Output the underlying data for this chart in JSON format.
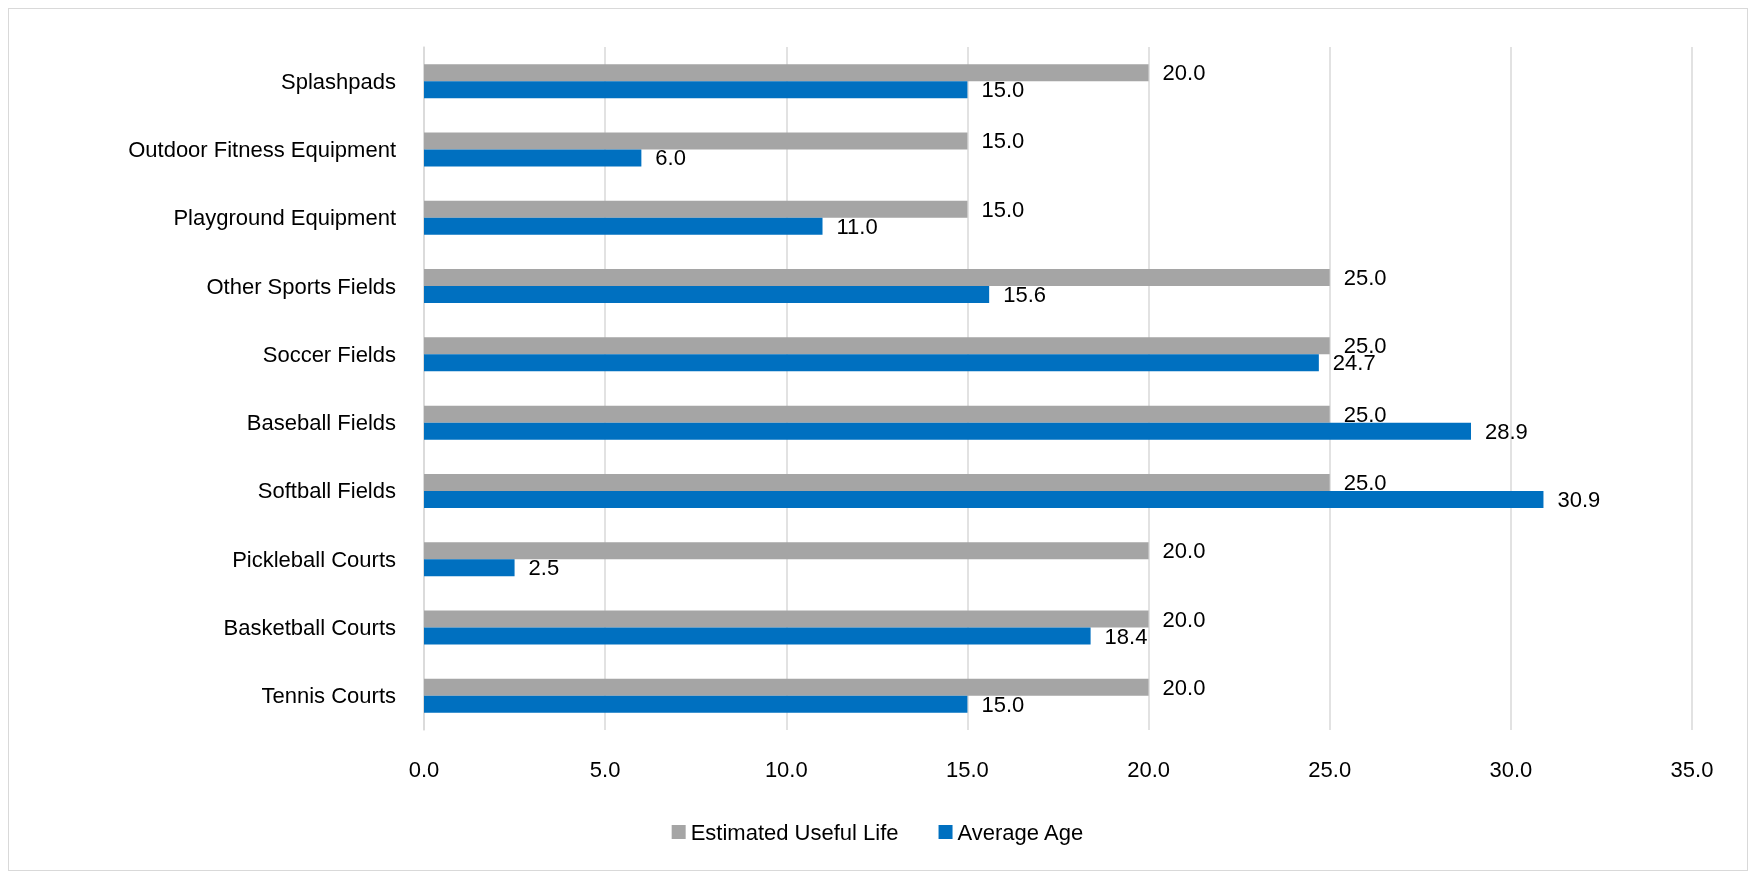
{
  "chart_data": {
    "type": "bar",
    "orientation": "horizontal",
    "categories": [
      "Splashpads",
      "Outdoor Fitness Equipment",
      "Playground Equipment",
      "Other Sports Fields",
      "Soccer Fields",
      "Baseball Fields",
      "Softball Fields",
      "Pickleball Courts",
      "Basketball Courts",
      "Tennis Courts"
    ],
    "series": [
      {
        "name": "Estimated Useful Life",
        "color": "#a5a5a5",
        "values": [
          20,
          15,
          15,
          25,
          25,
          25,
          25,
          20,
          20,
          20
        ],
        "value_labels": [
          "20.0",
          "15.0",
          "15.0",
          "25.0",
          "25.0",
          "25.0",
          "25.0",
          "20.0",
          "20.0",
          "20.0"
        ]
      },
      {
        "name": "Average Age",
        "color": "#0070c0",
        "values": [
          15,
          6,
          11,
          15.6,
          24.7,
          28.9,
          30.9,
          2.5,
          18.4,
          15
        ],
        "value_labels": [
          "15.0",
          "6.0",
          "11.0",
          "15.6",
          "24.7",
          "28.9",
          "30.9",
          "2.5",
          "18.4",
          "15.0"
        ]
      }
    ],
    "xlim": [
      0,
      35
    ],
    "xticks": [
      {
        "value": 0,
        "label": "0.0"
      },
      {
        "value": 5,
        "label": "5.0"
      },
      {
        "value": 10,
        "label": "10.0"
      },
      {
        "value": 15,
        "label": "15.0"
      },
      {
        "value": 20,
        "label": "20.0"
      },
      {
        "value": 25,
        "label": "25.0"
      },
      {
        "value": 30,
        "label": "30.0"
      },
      {
        "value": 35,
        "label": "35.0"
      }
    ],
    "grid": "x",
    "legend": "bottom"
  }
}
